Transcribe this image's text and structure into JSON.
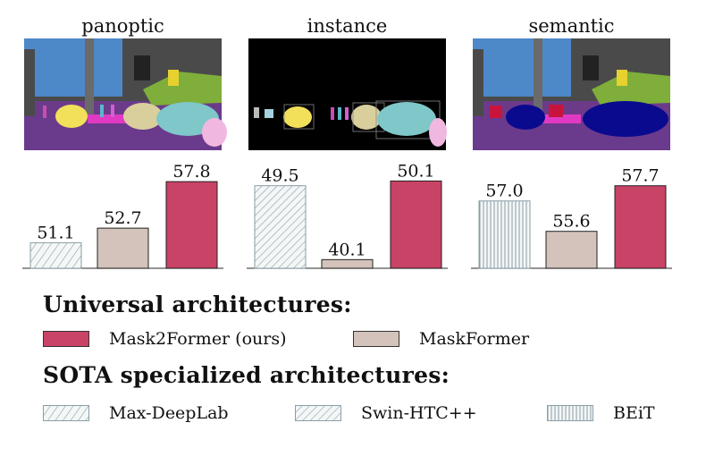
{
  "colors": {
    "mask2former": "#c94366",
    "maskformer": "#d4c3bb",
    "pattern_stroke": "#8a9ea6",
    "pattern_bg": "#f4f7f7",
    "axis": "#555555"
  },
  "chart_data": [
    {
      "type": "bar",
      "title": "panoptic",
      "categories": [
        "Max-DeepLab",
        "MaskFormer",
        "Mask2Former (ours)"
      ],
      "values": [
        51.1,
        52.7,
        57.8
      ],
      "labels": [
        "51.1",
        "52.7",
        "57.8"
      ],
      "styles": [
        "maxdeeplab",
        "maskformer",
        "mask2former"
      ],
      "ylim": [
        48.3,
        58.3
      ]
    },
    {
      "type": "bar",
      "title": "instance",
      "categories": [
        "Swin-HTC++",
        "MaskFormer",
        "Mask2Former (ours)"
      ],
      "values": [
        49.5,
        40.1,
        50.1
      ],
      "labels": [
        "49.5",
        "40.1",
        "50.1"
      ],
      "styles": [
        "swinhtc",
        "maskformer",
        "mask2former"
      ],
      "ylim": [
        39.0,
        50.6
      ]
    },
    {
      "type": "bar",
      "title": "semantic",
      "categories": [
        "BEiT",
        "MaskFormer",
        "Mask2Former (ours)"
      ],
      "values": [
        57.0,
        55.6,
        57.7
      ],
      "labels": [
        "57.0",
        "55.6",
        "57.7"
      ],
      "styles": [
        "beit",
        "maskformer",
        "mask2former"
      ],
      "ylim": [
        53.9,
        58.1
      ]
    }
  ],
  "legend": {
    "universal_title": "Universal architectures:",
    "specialized_title": "SOTA specialized architectures:",
    "items": {
      "mask2former": "Mask2Former (ours)",
      "maskformer": "MaskFormer",
      "maxdeeplab": "Max-DeepLab",
      "swinhtc": "Swin-HTC++",
      "beit": "BEiT"
    }
  }
}
